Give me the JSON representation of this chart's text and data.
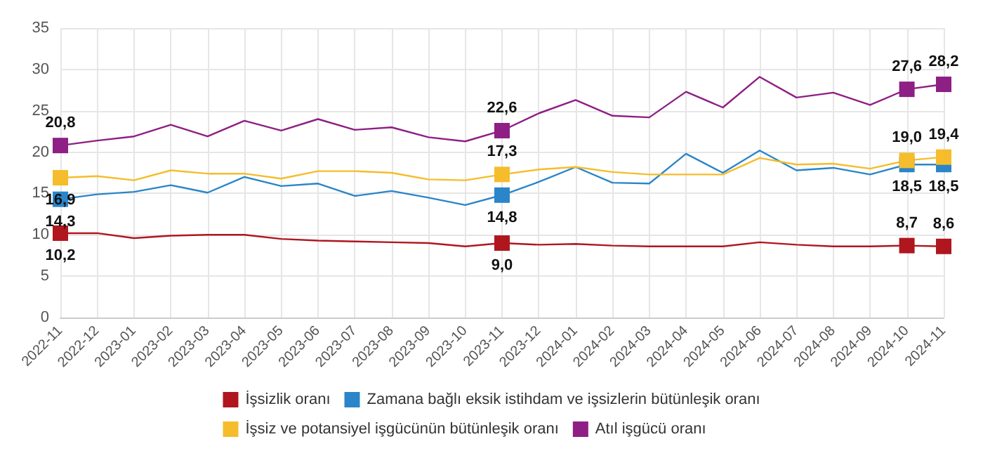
{
  "chart_data": {
    "type": "line",
    "categories": [
      "2022-11",
      "2022-12",
      "2023-01",
      "2023-02",
      "2023-03",
      "2023-04",
      "2023-05",
      "2023-06",
      "2023-07",
      "2023-08",
      "2023-09",
      "2023-10",
      "2023-11",
      "2023-12",
      "2024-01",
      "2024-02",
      "2024-03",
      "2024-04",
      "2024-05",
      "2024-06",
      "2024-07",
      "2024-08",
      "2024-09",
      "2024-10",
      "2024-11"
    ],
    "series": [
      {
        "name": "İşsizlik oranı",
        "color": "#b0161e",
        "values": [
          10.2,
          10.2,
          9.6,
          9.9,
          10.0,
          10.0,
          9.5,
          9.3,
          9.2,
          9.1,
          9.0,
          8.6,
          9.0,
          8.8,
          8.9,
          8.7,
          8.6,
          8.6,
          8.6,
          9.1,
          8.8,
          8.6,
          8.6,
          8.7,
          8.6
        ],
        "value_labels": [
          "10,2",
          null,
          null,
          null,
          null,
          null,
          null,
          null,
          null,
          null,
          null,
          null,
          "9,0",
          null,
          null,
          null,
          null,
          null,
          null,
          null,
          null,
          null,
          null,
          "8,7",
          "8,6"
        ]
      },
      {
        "name": "Zamana bağlı eksik istihdam ve işsizlerin bütünleşik oranı",
        "color": "#2a85c9",
        "values": [
          14.3,
          14.9,
          15.2,
          16.0,
          15.1,
          17.0,
          15.9,
          16.2,
          14.7,
          15.3,
          14.5,
          13.6,
          14.8,
          16.4,
          18.2,
          16.3,
          16.2,
          19.8,
          17.5,
          20.2,
          17.8,
          18.1,
          17.3,
          18.5,
          18.5
        ],
        "value_labels": [
          "14,3",
          null,
          null,
          null,
          null,
          null,
          null,
          null,
          null,
          null,
          null,
          null,
          "14,8",
          null,
          null,
          null,
          null,
          null,
          null,
          null,
          null,
          null,
          null,
          "18,5",
          "18,5"
        ]
      },
      {
        "name": "İşsiz ve potansiyel işgücünün bütünleşik oranı",
        "color": "#f5bd2c",
        "values": [
          16.9,
          17.1,
          16.6,
          17.8,
          17.4,
          17.4,
          16.8,
          17.7,
          17.7,
          17.5,
          16.7,
          16.6,
          17.3,
          17.9,
          18.2,
          17.6,
          17.3,
          17.3,
          17.3,
          19.3,
          18.5,
          18.6,
          18.0,
          19.0,
          19.4
        ],
        "value_labels": [
          "16,9",
          null,
          null,
          null,
          null,
          null,
          null,
          null,
          null,
          null,
          null,
          null,
          "17,3",
          null,
          null,
          null,
          null,
          null,
          null,
          null,
          null,
          null,
          null,
          "19,0",
          "19,4"
        ]
      },
      {
        "name": "Atıl işgücü oranı",
        "color": "#8e1f84",
        "values": [
          20.8,
          21.4,
          21.9,
          23.3,
          21.9,
          23.8,
          22.6,
          24.0,
          22.7,
          23.0,
          21.8,
          21.3,
          22.6,
          24.7,
          26.3,
          24.4,
          24.2,
          27.3,
          25.4,
          29.1,
          26.6,
          27.2,
          25.7,
          27.6,
          28.2
        ],
        "value_labels": [
          "20,8",
          null,
          null,
          null,
          null,
          null,
          null,
          null,
          null,
          null,
          null,
          null,
          "22,6",
          null,
          null,
          null,
          null,
          null,
          null,
          null,
          null,
          null,
          null,
          "27,6",
          "28,2"
        ]
      }
    ],
    "ylim": [
      0,
      35
    ],
    "yticks": [
      0,
      5,
      10,
      15,
      20,
      25,
      30,
      35
    ],
    "grid": true,
    "legend": "bottom",
    "line_style": "solid"
  }
}
